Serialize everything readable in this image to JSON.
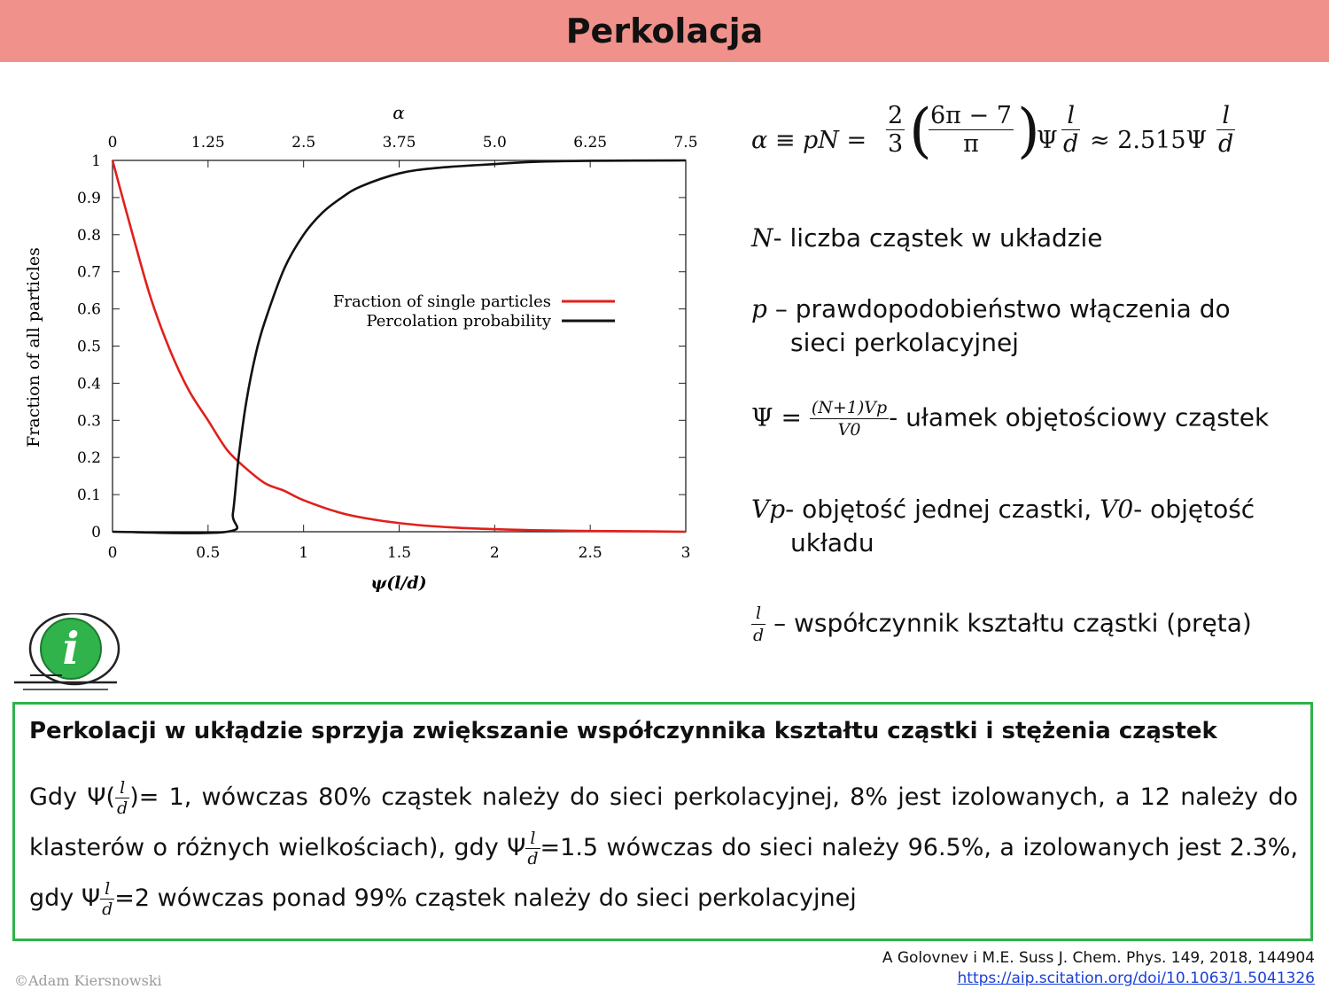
{
  "slide": {
    "title": "Perkolacja"
  },
  "chart_data": {
    "type": "line",
    "xlabel": "ψ(l/d)",
    "top_xlabel": "α",
    "ylabel": "Fraction of all particles",
    "xlim": [
      0,
      3
    ],
    "ylim": [
      0,
      1
    ],
    "x_ticks": [
      "0",
      "0.5",
      "1",
      "1.5",
      "2",
      "2.5",
      "3"
    ],
    "top_x_ticks": [
      "0",
      "1.25",
      "2.5",
      "3.75",
      "5.0",
      "6.25",
      "7.5"
    ],
    "y_ticks": [
      "0",
      "0.1",
      "0.2",
      "0.3",
      "0.4",
      "0.5",
      "0.6",
      "0.7",
      "0.8",
      "0.9",
      "1"
    ],
    "legend_position": "center-right",
    "series": [
      {
        "name": "Fraction of single particles",
        "color": "#e0201b",
        "x": [
          0,
          0.1,
          0.2,
          0.3,
          0.4,
          0.5,
          0.6,
          0.7,
          0.8,
          0.9,
          1.0,
          1.2,
          1.4,
          1.6,
          1.8,
          2.0,
          2.2,
          2.5,
          2.8,
          3.0
        ],
        "y": [
          1.0,
          0.81,
          0.63,
          0.49,
          0.38,
          0.3,
          0.22,
          0.17,
          0.13,
          0.11,
          0.085,
          0.05,
          0.03,
          0.018,
          0.011,
          0.007,
          0.004,
          0.002,
          0.001,
          0.0
        ]
      },
      {
        "name": "Percolation probability",
        "color": "#111111",
        "x": [
          0,
          0.6,
          0.63,
          0.66,
          0.7,
          0.75,
          0.8,
          0.9,
          1.0,
          1.1,
          1.2,
          1.3,
          1.5,
          1.7,
          2.0,
          2.2,
          2.5,
          3.0
        ],
        "y": [
          0,
          0,
          0.05,
          0.2,
          0.35,
          0.48,
          0.57,
          0.71,
          0.8,
          0.86,
          0.9,
          0.93,
          0.965,
          0.98,
          0.99,
          0.996,
          0.999,
          1.0
        ]
      }
    ]
  },
  "equation": {
    "lhs": "α ≡ pN =",
    "frac1_num": "2",
    "frac1_den": "3",
    "frac2_num": "6π − 7",
    "frac2_den": "π",
    "psi": "Ψ",
    "ld_num": "l",
    "ld_den": "d",
    "approx": "≈ 2.515Ψ"
  },
  "definitions": {
    "n_symbol": "N",
    "n_text": "- liczba cząstek w układzie",
    "p_symbol": "p",
    "p_text_1": "– prawdopodobieństwo włączenia do",
    "p_text_2": "sieci perkolacyjnej",
    "psi_symbol": "Ψ =",
    "psi_num": "(N+1)Vp",
    "psi_den": "V0",
    "psi_text": "- ułamek objętościowy cząstek",
    "vp_symbol": "Vp",
    "vp_text_1": "- objętość jednej czastki,",
    "v0_symbol": "V0",
    "vp_text_2": "- objętość",
    "vp_text_3": "układu",
    "ld_num": "l",
    "ld_den": "d",
    "ld_text": "– współczynnik kształtu cząstki (pręta)"
  },
  "note": {
    "heading": "Perkolacji w ukłądzie sprzyja zwiększanie współczynnika kształtu cząstki i stężenia cząstek",
    "p1": "Gdy Ψ(",
    "p2": ")= 1, wówczas 80% cząstek należy do sieci perkolacyjnej, 8% jest izolowanych, a 12 należy do klasterów o różnych wielkościach), gdy Ψ",
    "p3": "=1.5 wówczas do sieci należy 96.5%, a izolowanych jest 2.3%, gdy Ψ",
    "p4": "=2 wówczas ponad 99% cząstek należy do sieci perkolacyjnej",
    "frac_num": "l",
    "frac_den": "d",
    "icon_glyph": "i"
  },
  "reference": {
    "citation": "A Golovnev i M.E. Suss J. Chem. Phys. 149, 2018, 144904",
    "url": "https://aip.scitation.org/doi/10.1063/1.5041326"
  },
  "footer": {
    "copyright": "©Adam Kiersnowski"
  },
  "colors": {
    "title_bar": "#f0928b",
    "note_border": "#2fb34a",
    "icon_green": "#2fb34a",
    "link": "#1a3fd6"
  }
}
